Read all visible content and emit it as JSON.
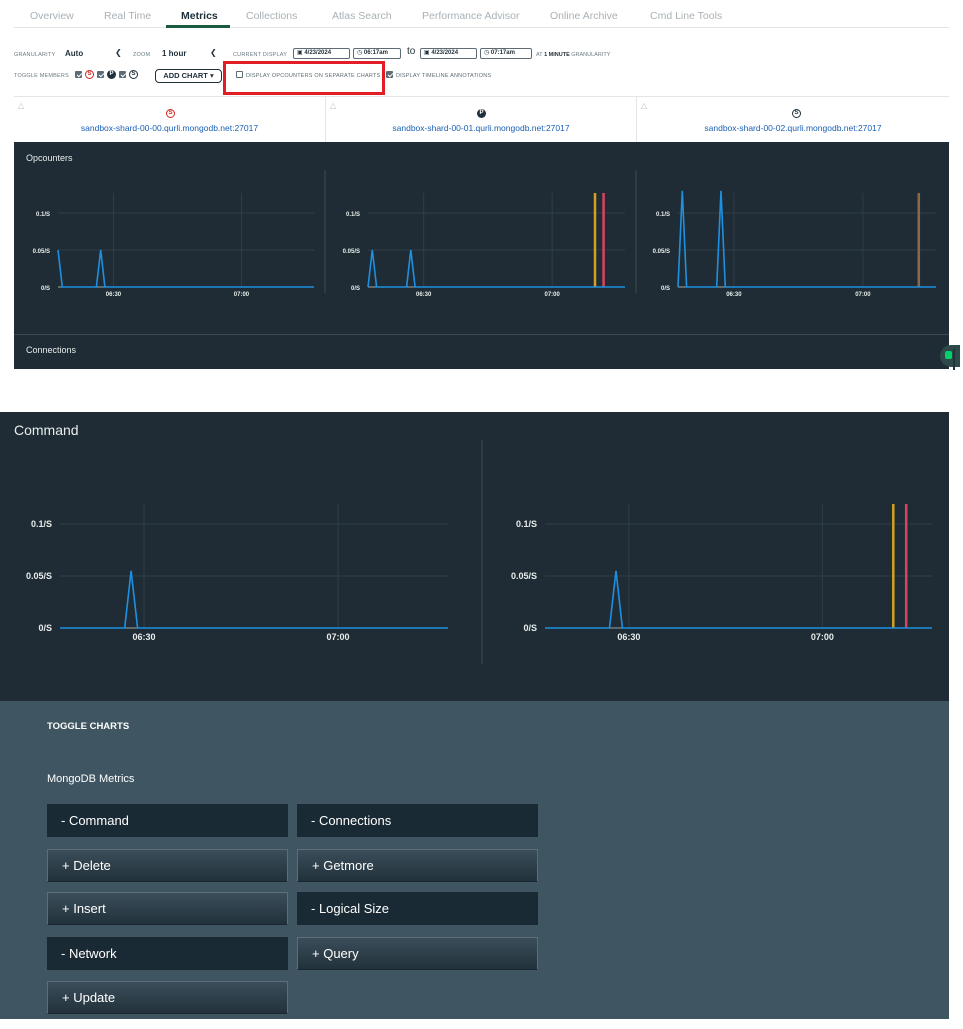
{
  "tabs": [
    {
      "label": "Overview",
      "active": false
    },
    {
      "label": "Real Time",
      "active": false
    },
    {
      "label": "Metrics",
      "active": true
    },
    {
      "label": "Collections",
      "active": false
    },
    {
      "label": "Atlas Search",
      "active": false
    },
    {
      "label": "Performance Advisor",
      "active": false
    },
    {
      "label": "Online Archive",
      "active": false
    },
    {
      "label": "Cmd Line Tools",
      "active": false
    }
  ],
  "controls": {
    "granularity_label": "GRANULARITY",
    "granularity_value": "Auto",
    "zoom_label": "ZOOM",
    "zoom_value": "1 hour",
    "current_display_label": "CURRENT DISPLAY",
    "start_date": "4/23/2024",
    "start_time": "06:17am",
    "to_label": "to",
    "end_date": "4/23/2024",
    "end_time": "07:17am",
    "granularity_note_prefix": "AT",
    "granularity_note_value": "1 MINUTE",
    "granularity_note_suffix": "GRANULARITY",
    "toggle_members_label": "TOGGLE MEMBERS",
    "members": [
      "S",
      "P",
      "S"
    ],
    "add_chart_label": "ADD CHART ▾",
    "separate_charts_label": "DISPLAY OPCOUNTERS ON SEPARATE CHARTS",
    "separate_charts_checked": false,
    "timeline_label": "DISPLAY TIMELINE ANNOTATIONS",
    "timeline_checked": true
  },
  "hosts": [
    {
      "badge": "S",
      "name": "sandbox-shard-00-00.qurli.mongodb.net:27017",
      "badge_color": "#d5241f"
    },
    {
      "badge": "P",
      "name": "sandbox-shard-00-01.qurli.mongodb.net:27017",
      "badge_color": "#21313c"
    },
    {
      "badge": "S",
      "name": "sandbox-shard-00-02.qurli.mongodb.net:27017",
      "badge_color": "#21313c"
    }
  ],
  "charts": {
    "opcounters_title": "Opcounters",
    "connections_title": "Connections",
    "command_title": "Command",
    "y_ticks": [
      "0.1/S",
      "0.05/S",
      "0/S"
    ],
    "x_ticks": [
      "06:30",
      "07:00"
    ],
    "line_color": "#1e90e0",
    "annotation_colors": [
      "#d4a022",
      "#d94560",
      "#8a6a4a"
    ]
  },
  "chart_data": [
    {
      "type": "line",
      "title": "Opcounters",
      "panes": [
        {
          "host": "sandbox-shard-00-00",
          "x": [
            "06:17",
            "06:18",
            "06:26",
            "06:27",
            "06:28",
            "07:17"
          ],
          "y": [
            0.05,
            0,
            0,
            0.05,
            0,
            0
          ],
          "annotations": []
        },
        {
          "host": "sandbox-shard-00-01",
          "x": [
            "06:17",
            "06:18",
            "06:19",
            "06:26",
            "06:27",
            "06:28",
            "07:17"
          ],
          "y": [
            0,
            0.05,
            0,
            0,
            0.05,
            0,
            0
          ],
          "annotations": [
            "07:10",
            "07:12"
          ]
        },
        {
          "host": "sandbox-shard-00-02",
          "x": [
            "06:17",
            "06:18",
            "06:19",
            "06:26",
            "06:27",
            "06:28",
            "07:17"
          ],
          "y": [
            0,
            0.13,
            0,
            0,
            0.13,
            0,
            0
          ],
          "annotations": [
            "07:13"
          ]
        }
      ],
      "y_ticks": [
        "0.1/S",
        "0.05/S",
        "0/S"
      ],
      "x_ticks": [
        "06:30",
        "07:00"
      ]
    },
    {
      "type": "line",
      "title": "Command",
      "panes": [
        {
          "host": "sandbox-shard-00-00",
          "x": [
            "06:17",
            "06:27",
            "06:28",
            "06:29",
            "07:17"
          ],
          "y": [
            0,
            0,
            0.055,
            0,
            0
          ],
          "annotations": []
        },
        {
          "host": "sandbox-shard-00-01",
          "x": [
            "06:17",
            "06:27",
            "06:28",
            "06:29",
            "07:17"
          ],
          "y": [
            0,
            0,
            0.055,
            0,
            0
          ],
          "annotations": [
            "07:11",
            "07:13"
          ]
        }
      ],
      "y_ticks": [
        "0.1/S",
        "0.05/S",
        "0/S"
      ],
      "x_ticks": [
        "06:30",
        "07:00"
      ]
    }
  ],
  "toggle": {
    "title": "TOGGLE CHARTS",
    "section": "MongoDB Metrics",
    "buttons": [
      {
        "label": "-  Command",
        "state": "on"
      },
      {
        "label": "-  Connections",
        "state": "on"
      },
      {
        "label": "+  Delete",
        "state": "off"
      },
      {
        "label": "+  Getmore",
        "state": "off"
      },
      {
        "label": "+  Insert",
        "state": "off"
      },
      {
        "label": "-  Logical Size",
        "state": "on"
      },
      {
        "label": "-  Network",
        "state": "on"
      },
      {
        "label": "+  Query",
        "state": "off"
      },
      {
        "label": "+  Update",
        "state": "off"
      }
    ]
  }
}
